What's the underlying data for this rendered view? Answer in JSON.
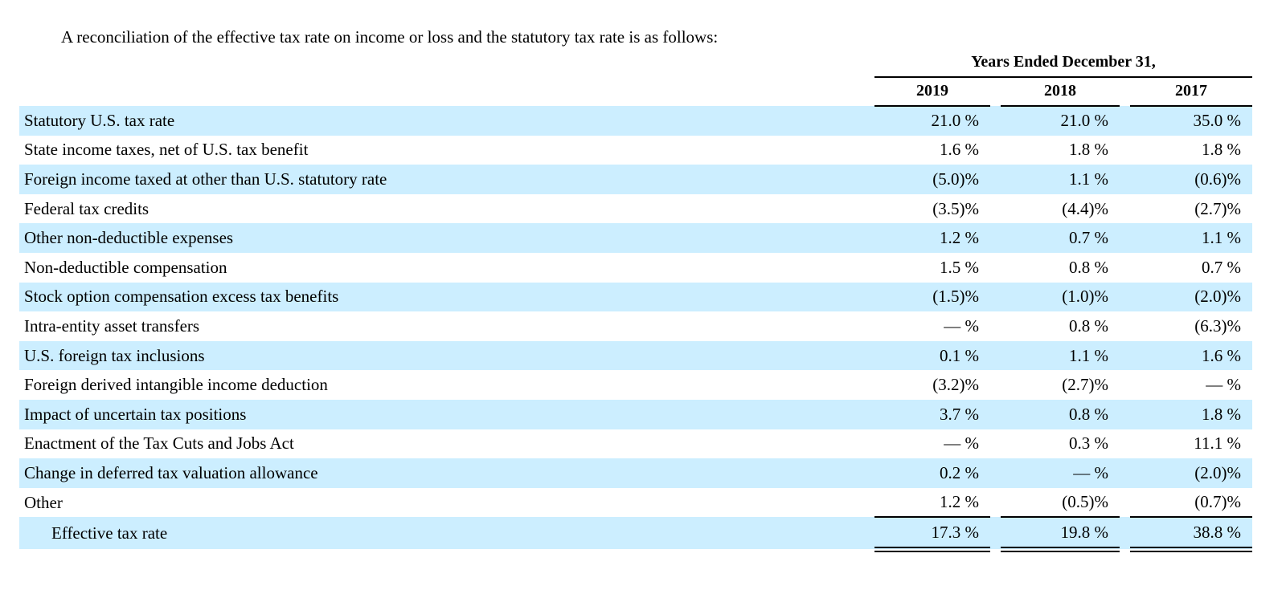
{
  "intro": "A reconciliation of the effective tax rate on income or loss and the statutory tax rate is as follows:",
  "table": {
    "group_header": "Years Ended December 31,",
    "columns": [
      "2019",
      "2018",
      "2017"
    ],
    "rows": [
      {
        "label": "Statutory U.S. tax rate",
        "values": [
          "21.0 %",
          "21.0 %",
          "35.0 %"
        ]
      },
      {
        "label": "State income taxes, net of U.S. tax benefit",
        "values": [
          "1.6 %",
          "1.8 %",
          "1.8 %"
        ]
      },
      {
        "label": "Foreign income taxed at other than U.S. statutory rate",
        "values": [
          "(5.0)%",
          "1.1 %",
          "(0.6)%"
        ]
      },
      {
        "label": "Federal tax credits",
        "values": [
          "(3.5)%",
          "(4.4)%",
          "(2.7)%"
        ]
      },
      {
        "label": "Other non-deductible expenses",
        "values": [
          "1.2 %",
          "0.7 %",
          "1.1 %"
        ]
      },
      {
        "label": "Non-deductible compensation",
        "values": [
          "1.5 %",
          "0.8 %",
          "0.7 %"
        ]
      },
      {
        "label": "Stock option compensation excess tax benefits",
        "values": [
          "(1.5)%",
          "(1.0)%",
          "(2.0)%"
        ]
      },
      {
        "label": "Intra-entity asset transfers",
        "values": [
          "— %",
          "0.8 %",
          "(6.3)%"
        ]
      },
      {
        "label": "U.S. foreign tax inclusions",
        "values": [
          "0.1 %",
          "1.1 %",
          "1.6 %"
        ]
      },
      {
        "label": "Foreign derived intangible income deduction",
        "values": [
          "(3.2)%",
          "(2.7)%",
          "— %"
        ]
      },
      {
        "label": "Impact of uncertain tax positions",
        "values": [
          "3.7 %",
          "0.8 %",
          "1.8 %"
        ]
      },
      {
        "label": "Enactment of the Tax Cuts and Jobs Act",
        "values": [
          "— %",
          "0.3 %",
          "11.1 %"
        ]
      },
      {
        "label": "Change in deferred tax valuation allowance",
        "values": [
          "0.2 %",
          "— %",
          "(2.0)%"
        ]
      },
      {
        "label": "Other",
        "values": [
          "1.2 %",
          "(0.5)%",
          "(0.7)%"
        ]
      }
    ],
    "total_row": {
      "label": "Effective tax rate",
      "values": [
        "17.3 %",
        "19.8 %",
        "38.8 %"
      ]
    }
  },
  "colors": {
    "row_highlight": "#cceeff",
    "text": "#000000",
    "rule": "#000000"
  }
}
